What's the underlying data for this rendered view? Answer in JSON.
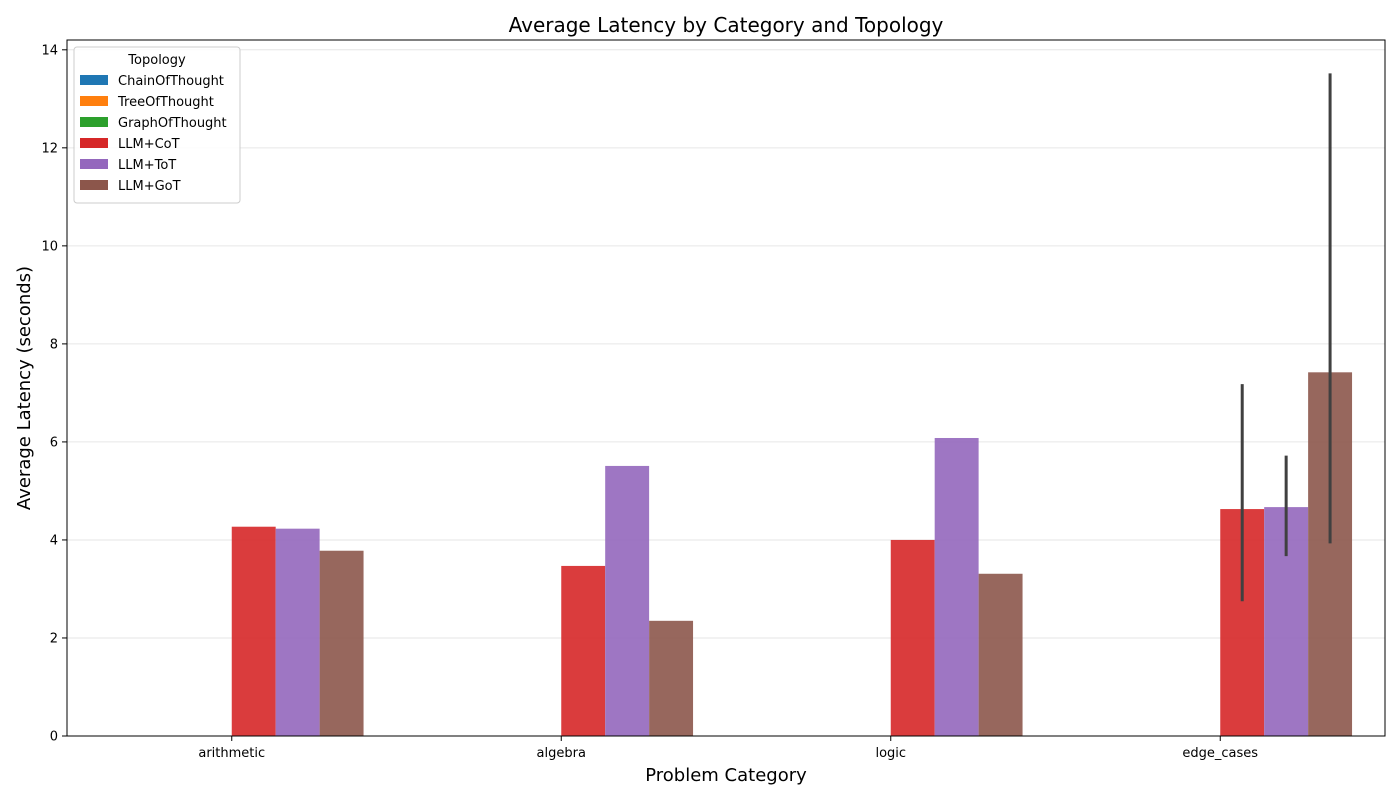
{
  "chart_data": {
    "type": "bar",
    "title": "Average Latency by Category and Topology",
    "xlabel": "Problem Category",
    "ylabel": "Average Latency (seconds)",
    "categories": [
      "arithmetic",
      "algebra",
      "logic",
      "edge_cases"
    ],
    "ylim": [
      0,
      14.2
    ],
    "yticks": [
      0,
      2,
      4,
      6,
      8,
      10,
      12,
      14
    ],
    "grid": "horizontal",
    "legend": {
      "title": "Topology",
      "placement": "top-left"
    },
    "series": [
      {
        "name": "ChainOfThought",
        "color": "#1f77b4",
        "values": [
          null,
          null,
          null,
          null
        ]
      },
      {
        "name": "TreeOfThought",
        "color": "#ff7f0e",
        "values": [
          null,
          null,
          null,
          null
        ]
      },
      {
        "name": "GraphOfThought",
        "color": "#2ca02c",
        "values": [
          null,
          null,
          null,
          null
        ]
      },
      {
        "name": "LLM+CoT",
        "color": "#d62728",
        "values": [
          4.27,
          3.47,
          4.0,
          4.63
        ],
        "error": [
          null,
          null,
          null,
          [
            2.75,
            7.18
          ]
        ]
      },
      {
        "name": "LLM+ToT",
        "color": "#9467bd",
        "values": [
          4.23,
          5.51,
          6.08,
          4.67
        ],
        "error": [
          null,
          null,
          null,
          [
            3.67,
            5.72
          ]
        ]
      },
      {
        "name": "LLM+GoT",
        "color": "#8c564b",
        "values": [
          3.78,
          2.35,
          3.31,
          7.42
        ],
        "error": [
          null,
          null,
          null,
          [
            3.93,
            13.52
          ]
        ]
      }
    ]
  }
}
